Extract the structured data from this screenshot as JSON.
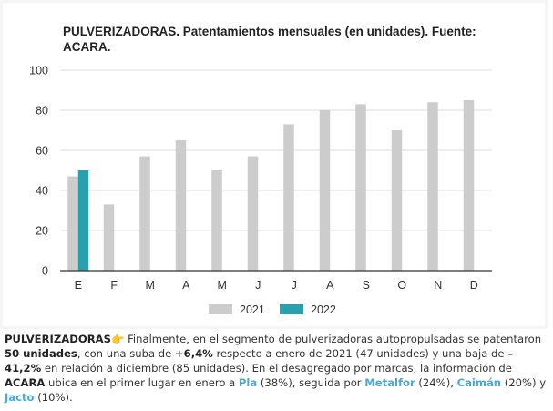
{
  "chart_data": {
    "type": "bar",
    "title": "PULVERIZADORAS. Patentamientos mensuales (en unidades). Fuente: ACARA.",
    "categories": [
      "E",
      "F",
      "M",
      "A",
      "M",
      "J",
      "J",
      "A",
      "S",
      "O",
      "N",
      "D"
    ],
    "series": [
      {
        "name": "2021",
        "color": "#cccccc",
        "values": [
          47,
          33,
          57,
          65,
          50,
          57,
          73,
          80,
          83,
          70,
          84,
          85
        ]
      },
      {
        "name": "2022",
        "color": "#2a9fad",
        "values": [
          50,
          null,
          null,
          null,
          null,
          null,
          null,
          null,
          null,
          null,
          null,
          null
        ]
      }
    ],
    "yticks": [
      0,
      20,
      40,
      60,
      80,
      100
    ],
    "ylim": [
      0,
      100
    ],
    "grid": true,
    "legend_position": "bottom"
  },
  "caption": {
    "lead": "PULVERIZADORAS",
    "hand_icon": "👉",
    "t1": " Finalmente, en el segmento de pulverizadoras autopropulsadas se patentaron ",
    "b1": "50 unidades",
    "t2": ", con una suba de ",
    "b2": "+6,4%",
    "t3": " respecto a enero de 2021 (47 unidades) y una baja de ",
    "b3": "–41,2%",
    "t4": " en relación a diciembre (85 unidades). En el desagregado por marcas, la información de ",
    "b4": "ACARA",
    "t5": " ubica en el primer lugar en enero a ",
    "brand1": "Pla",
    "t6": " (38%), seguida por ",
    "brand2": "Metalfor",
    "t7": " (24%), ",
    "brand3": "Caimán",
    "t8": " (20%) y ",
    "brand4": "Jacto",
    "t9": " (10%)."
  }
}
